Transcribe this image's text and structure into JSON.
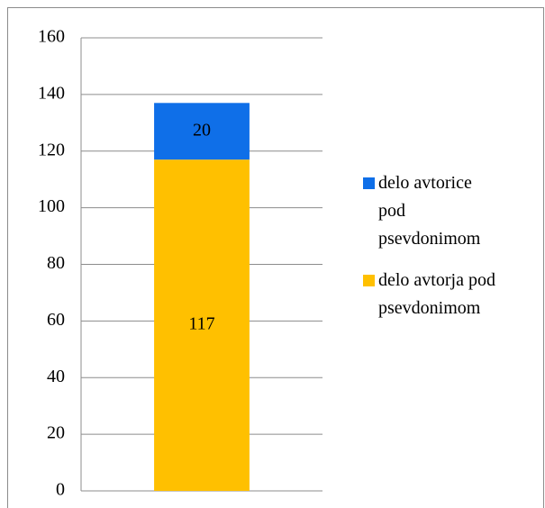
{
  "chart_data": {
    "type": "stacked-bar",
    "categories": [
      null
    ],
    "series": [
      {
        "name": "delo avtorja pod psevdonimom",
        "color": "#FFC000",
        "values": [
          117
        ]
      },
      {
        "name": "delo avtorice pod psevdonimom",
        "color": "#0F6FE8",
        "values": [
          20
        ]
      }
    ],
    "ylim": [
      0,
      160
    ],
    "yticks": [
      0,
      20,
      40,
      60,
      80,
      100,
      120,
      140,
      160
    ],
    "grid": true,
    "legend": "right"
  }
}
